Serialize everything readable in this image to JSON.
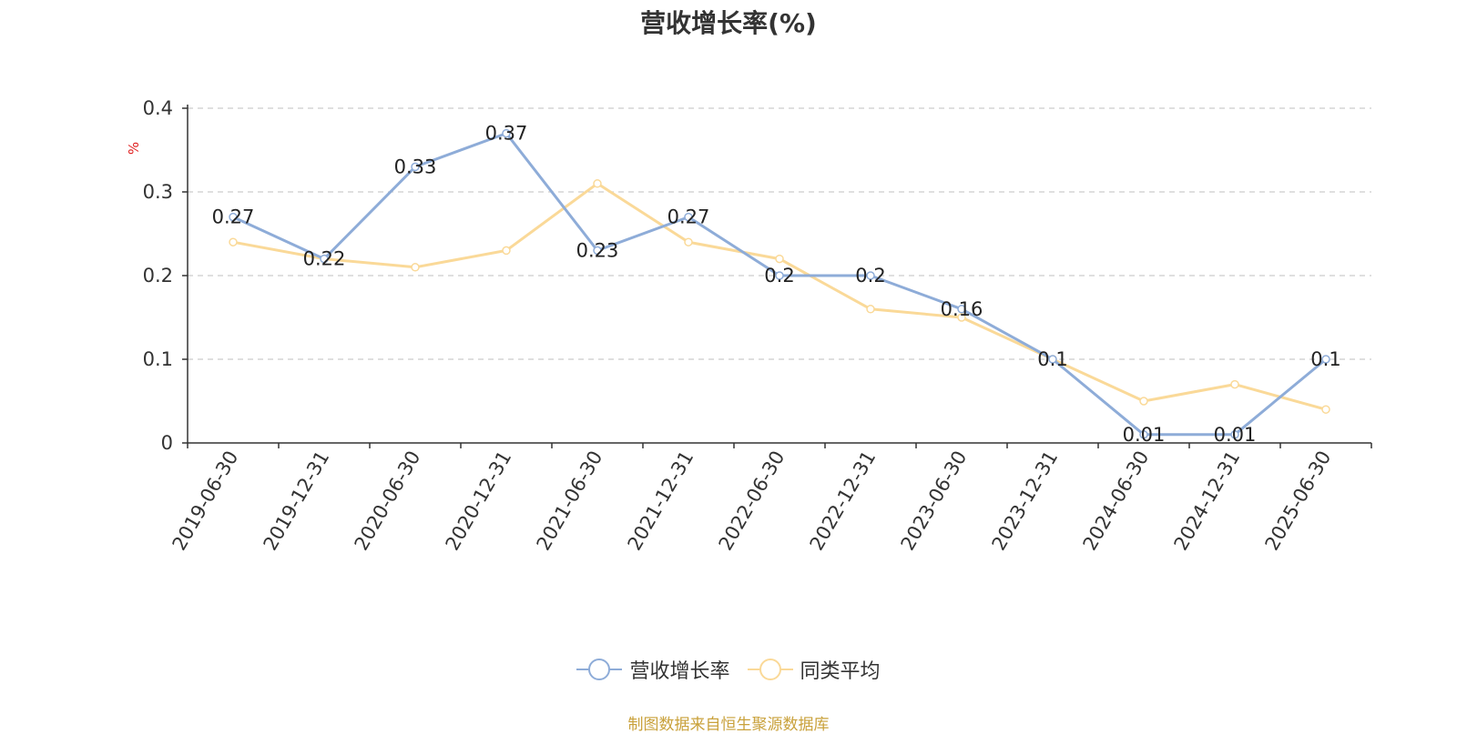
{
  "chart_title": "营收增长率(%)",
  "y_unit": "%",
  "source_note": "制图数据来自恒生聚源数据库",
  "colors": {
    "series1": "#8eacd8",
    "series2": "#fad998",
    "unit": "#e02020",
    "source": "#c9a13b"
  },
  "chart_data": {
    "type": "line",
    "title": "营收增长率(%)",
    "ylabel": "%",
    "ylim": [
      0,
      0.4
    ],
    "yticks": [
      "0",
      "0.1",
      "0.2",
      "0.3",
      "0.4"
    ],
    "grid": "horizontal-dashed",
    "legend_position": "bottom",
    "categories": [
      "2019-06-30",
      "2019-12-31",
      "2020-06-30",
      "2020-12-31",
      "2021-06-30",
      "2021-12-31",
      "2022-06-30",
      "2022-12-31",
      "2023-06-30",
      "2023-12-31",
      "2024-06-30",
      "2024-12-31",
      "2025-06-30"
    ],
    "series": [
      {
        "name": "营收增长率",
        "values": [
          0.27,
          0.22,
          0.33,
          0.37,
          0.23,
          0.27,
          0.2,
          0.2,
          0.16,
          0.1,
          0.01,
          0.01,
          0.1
        ],
        "labels": [
          "0.27",
          "0.22",
          "0.33",
          "0.37",
          "0.23",
          "0.27",
          "0.2",
          "0.2",
          "0.16",
          "0.1",
          "0.01",
          "0.01",
          "0.1"
        ]
      },
      {
        "name": "同类平均",
        "values": [
          0.24,
          0.22,
          0.21,
          0.23,
          0.31,
          0.24,
          0.22,
          0.16,
          0.15,
          0.1,
          0.05,
          0.07,
          0.04
        ]
      }
    ]
  }
}
